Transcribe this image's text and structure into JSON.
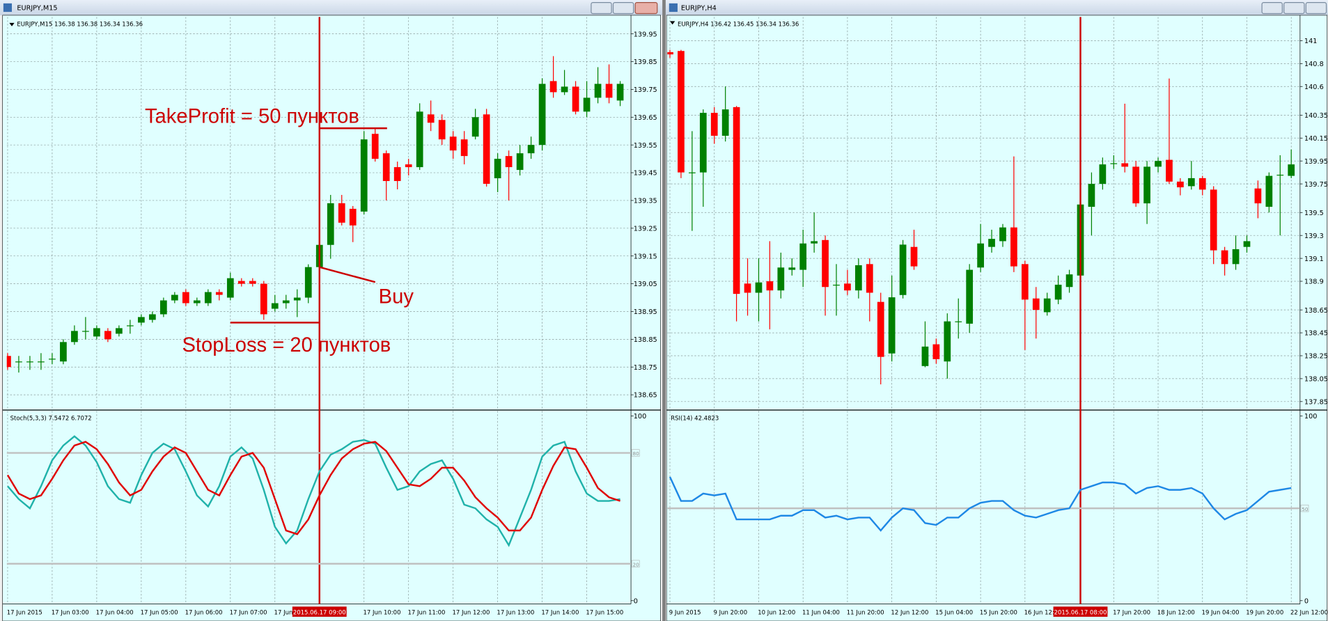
{
  "windows": [
    {
      "title": "EURJPY,M15"
    },
    {
      "title": "EURJPY,H4"
    }
  ],
  "chart_data": [
    {
      "type": "candlestick",
      "header": "EURJPY,M15  136.38 136.38 136.34 136.36",
      "up_color": "#008000",
      "down_color": "#ff0000",
      "ylim": [
        138.65,
        139.95
      ],
      "yticks": [
        139.95,
        139.85,
        139.75,
        139.65,
        139.55,
        139.45,
        139.35,
        139.25,
        139.15,
        139.05,
        138.95,
        138.85,
        138.75,
        138.65
      ],
      "grid": true,
      "xticks": [
        {
          "value": 0,
          "label": "17 Jun 2015"
        },
        {
          "value": 4,
          "label": "17 Jun 03:00"
        },
        {
          "value": 8,
          "label": "17 Jun 04:00"
        },
        {
          "value": 12,
          "label": "17 Jun 05:00"
        },
        {
          "value": 16,
          "label": "17 Jun 06:00"
        },
        {
          "value": 20,
          "label": "17 Jun 07:00"
        },
        {
          "value": 24,
          "label": "17 Jun 08:00"
        },
        {
          "value": 32,
          "label": "17 Jun 10:00"
        },
        {
          "value": 36,
          "label": "17 Jun 11:00"
        },
        {
          "value": 40,
          "label": "17 Jun 12:00"
        },
        {
          "value": 44,
          "label": "17 Jun 13:00"
        },
        {
          "value": 48,
          "label": "17 Jun 14:00"
        },
        {
          "value": 52,
          "label": "17 Jun 15:00"
        }
      ],
      "cursor": {
        "value": 28,
        "label": "2015.06.17 09:00"
      },
      "annotations": [
        {
          "text": "TakeProfit = 50 пунктов",
          "value": 139.61
        },
        {
          "text": "Buy",
          "value": 139.11
        },
        {
          "text": "StopLoss = 20 пунктов",
          "value": 138.91
        }
      ],
      "ohlc": [
        [
          138.79,
          138.8,
          138.74,
          138.75
        ],
        [
          138.77,
          138.79,
          138.73,
          138.77
        ],
        [
          138.77,
          138.79,
          138.74,
          138.77
        ],
        [
          138.77,
          138.8,
          138.74,
          138.77
        ],
        [
          138.78,
          138.8,
          138.76,
          138.78
        ],
        [
          138.77,
          138.85,
          138.76,
          138.84
        ],
        [
          138.84,
          138.9,
          138.83,
          138.88
        ],
        [
          138.88,
          138.93,
          138.85,
          138.88
        ],
        [
          138.86,
          138.9,
          138.85,
          138.89
        ],
        [
          138.88,
          138.89,
          138.84,
          138.85
        ],
        [
          138.87,
          138.9,
          138.86,
          138.89
        ],
        [
          138.9,
          138.92,
          138.87,
          138.9
        ],
        [
          138.91,
          138.94,
          138.9,
          138.93
        ],
        [
          138.92,
          138.95,
          138.91,
          138.94
        ],
        [
          138.94,
          139.0,
          138.93,
          138.99
        ],
        [
          138.99,
          139.02,
          138.98,
          139.01
        ],
        [
          139.02,
          139.03,
          138.97,
          138.98
        ],
        [
          138.98,
          139.0,
          138.97,
          138.99
        ],
        [
          138.98,
          139.03,
          138.97,
          139.02
        ],
        [
          139.02,
          139.03,
          138.99,
          139.01
        ],
        [
          139.0,
          139.09,
          138.99,
          139.07
        ],
        [
          139.06,
          139.07,
          139.04,
          139.05
        ],
        [
          139.06,
          139.07,
          139.04,
          139.05
        ],
        [
          139.05,
          139.06,
          138.92,
          138.94
        ],
        [
          138.96,
          139.01,
          138.95,
          138.98
        ],
        [
          138.98,
          139.01,
          138.96,
          138.99
        ],
        [
          138.99,
          139.03,
          138.93,
          139.0
        ],
        [
          139.0,
          139.12,
          138.98,
          139.11
        ],
        [
          139.11,
          139.2,
          139.1,
          139.19
        ],
        [
          139.19,
          139.37,
          139.14,
          139.34
        ],
        [
          139.34,
          139.37,
          139.26,
          139.27
        ],
        [
          139.32,
          139.33,
          139.2,
          139.26
        ],
        [
          139.31,
          139.6,
          139.3,
          139.57
        ],
        [
          139.59,
          139.61,
          139.49,
          139.5
        ],
        [
          139.52,
          139.53,
          139.35,
          139.42
        ],
        [
          139.47,
          139.49,
          139.39,
          139.42
        ],
        [
          139.48,
          139.5,
          139.44,
          139.47
        ],
        [
          139.47,
          139.7,
          139.46,
          139.67
        ],
        [
          139.66,
          139.71,
          139.6,
          139.63
        ],
        [
          139.64,
          139.66,
          139.55,
          139.57
        ],
        [
          139.58,
          139.6,
          139.5,
          139.53
        ],
        [
          139.57,
          139.6,
          139.48,
          139.51
        ],
        [
          139.58,
          139.68,
          139.57,
          139.65
        ],
        [
          139.66,
          139.68,
          139.4,
          139.41
        ],
        [
          139.43,
          139.52,
          139.38,
          139.5
        ],
        [
          139.51,
          139.53,
          139.35,
          139.47
        ],
        [
          139.46,
          139.55,
          139.44,
          139.52
        ],
        [
          139.52,
          139.58,
          139.5,
          139.55
        ],
        [
          139.55,
          139.79,
          139.53,
          139.77
        ],
        [
          139.78,
          139.87,
          139.72,
          139.74
        ],
        [
          139.74,
          139.82,
          139.73,
          139.76
        ],
        [
          139.76,
          139.78,
          139.66,
          139.67
        ],
        [
          139.67,
          139.78,
          139.65,
          139.72
        ],
        [
          139.72,
          139.83,
          139.7,
          139.77
        ],
        [
          139.77,
          139.84,
          139.7,
          139.72
        ],
        [
          139.71,
          139.78,
          139.69,
          139.77
        ]
      ]
    },
    {
      "type": "line",
      "header": "Stoch(5,3,3) 7.5472 6.7072",
      "ylim": [
        0,
        100
      ],
      "yticks": [
        100,
        0
      ],
      "levels": [
        80,
        20
      ],
      "series": [
        {
          "color": "#20b2aa",
          "values": [
            62,
            55,
            50,
            62,
            76,
            84,
            89,
            84,
            75,
            62,
            55,
            53,
            68,
            80,
            85,
            82,
            70,
            57,
            51,
            62,
            78,
            83,
            77,
            60,
            40,
            31,
            38,
            55,
            70,
            79,
            82,
            86,
            87,
            85,
            72,
            60,
            62,
            70,
            74,
            76,
            66,
            52,
            50,
            44,
            40,
            30,
            45,
            60,
            78,
            84,
            86,
            70,
            58,
            54,
            54,
            55
          ]
        },
        {
          "color": "#e00000",
          "values": [
            68,
            58,
            55,
            57,
            66,
            76,
            84,
            86,
            82,
            74,
            64,
            57,
            60,
            70,
            78,
            83,
            80,
            70,
            60,
            57,
            68,
            78,
            80,
            72,
            55,
            38,
            36,
            44,
            57,
            68,
            77,
            82,
            85,
            86,
            81,
            72,
            63,
            62,
            66,
            72,
            72,
            65,
            56,
            50,
            45,
            38,
            38,
            45,
            60,
            73,
            83,
            82,
            72,
            61,
            56,
            54
          ]
        }
      ]
    },
    {
      "type": "candlestick",
      "header": "EURJPY,H4  136.42 136.45 136.34 136.36",
      "up_color": "#008000",
      "down_color": "#ff0000",
      "ylim": [
        137.85,
        141.0
      ],
      "yticks": [
        141.0,
        140.8,
        140.6,
        140.35,
        140.15,
        139.95,
        139.75,
        139.5,
        139.3,
        139.1,
        138.9,
        138.65,
        138.45,
        138.25,
        138.05,
        137.85
      ],
      "grid": true,
      "xticks": [
        {
          "value": 0,
          "label": "9 Jun 2015"
        },
        {
          "value": 4,
          "label": "9 Jun 20:00"
        },
        {
          "value": 8,
          "label": "10 Jun 12:00"
        },
        {
          "value": 12,
          "label": "11 Jun 04:00"
        },
        {
          "value": 16,
          "label": "11 Jun 20:00"
        },
        {
          "value": 20,
          "label": "12 Jun 12:00"
        },
        {
          "value": 24,
          "label": "15 Jun 04:00"
        },
        {
          "value": 28,
          "label": "15 Jun 20:00"
        },
        {
          "value": 32,
          "label": "16 Jun 12:00"
        },
        {
          "value": 40,
          "label": "17 Jun 20:00"
        },
        {
          "value": 44,
          "label": "18 Jun 12:00"
        },
        {
          "value": 48,
          "label": "19 Jun 04:00"
        },
        {
          "value": 52,
          "label": "19 Jun 20:00"
        },
        {
          "value": 56,
          "label": "22 Jun 12:00"
        }
      ],
      "cursor": {
        "value": 37,
        "label": "2015.06.17 08:00"
      },
      "ohlc": [
        [
          140.9,
          140.92,
          140.85,
          140.88
        ],
        [
          140.91,
          140.92,
          139.8,
          139.85
        ],
        [
          139.85,
          140.21,
          139.34,
          139.85
        ],
        [
          139.85,
          140.4,
          139.55,
          140.37
        ],
        [
          140.37,
          140.42,
          140.1,
          140.17
        ],
        [
          140.17,
          140.6,
          140.12,
          140.4
        ],
        [
          140.42,
          140.43,
          138.55,
          138.79
        ],
        [
          138.88,
          139.1,
          138.6,
          138.8
        ],
        [
          138.8,
          139.1,
          138.55,
          138.89
        ],
        [
          138.9,
          139.25,
          138.48,
          138.82
        ],
        [
          138.82,
          139.15,
          138.75,
          139.02
        ],
        [
          139.0,
          139.1,
          138.95,
          139.02
        ],
        [
          139.0,
          139.35,
          138.85,
          139.23
        ],
        [
          139.23,
          139.5,
          139.15,
          139.25
        ],
        [
          139.26,
          139.3,
          138.6,
          138.85
        ],
        [
          138.87,
          139.05,
          138.6,
          138.87
        ],
        [
          138.88,
          139.0,
          138.78,
          138.82
        ],
        [
          138.82,
          139.1,
          138.75,
          139.04
        ],
        [
          139.05,
          139.1,
          138.55,
          138.8
        ],
        [
          138.72,
          138.8,
          138.0,
          138.24
        ],
        [
          138.27,
          138.95,
          138.2,
          138.76
        ],
        [
          138.78,
          139.26,
          138.75,
          139.22
        ],
        [
          139.2,
          139.35,
          139.0,
          139.03
        ],
        [
          138.16,
          138.55,
          138.15,
          138.33
        ],
        [
          138.35,
          138.4,
          138.18,
          138.22
        ],
        [
          138.2,
          138.62,
          138.05,
          138.55
        ],
        [
          138.55,
          138.75,
          138.4,
          138.55
        ],
        [
          138.53,
          139.05,
          138.45,
          139.0
        ],
        [
          139.02,
          139.4,
          138.98,
          139.23
        ],
        [
          139.2,
          139.35,
          139.15,
          139.27
        ],
        [
          139.25,
          139.4,
          139.2,
          139.37
        ],
        [
          139.37,
          139.99,
          138.98,
          139.03
        ],
        [
          139.05,
          139.08,
          138.3,
          138.74
        ],
        [
          138.75,
          138.85,
          138.4,
          138.65
        ],
        [
          138.63,
          138.8,
          138.6,
          138.75
        ],
        [
          138.74,
          138.95,
          138.7,
          138.87
        ],
        [
          138.85,
          139.0,
          138.8,
          138.96
        ],
        [
          138.95,
          139.78,
          138.93,
          139.57
        ],
        [
          139.55,
          139.85,
          139.3,
          139.75
        ],
        [
          139.75,
          139.98,
          139.7,
          139.92
        ],
        [
          139.93,
          140.0,
          139.88,
          139.93
        ],
        [
          139.93,
          140.45,
          139.85,
          139.9
        ],
        [
          139.9,
          139.95,
          139.55,
          139.58
        ],
        [
          139.58,
          139.95,
          139.4,
          139.9
        ],
        [
          139.9,
          139.98,
          139.85,
          139.95
        ],
        [
          139.96,
          140.67,
          139.75,
          139.77
        ],
        [
          139.77,
          139.8,
          139.65,
          139.72
        ],
        [
          139.73,
          139.95,
          139.7,
          139.8
        ],
        [
          139.8,
          139.82,
          139.65,
          139.7
        ],
        [
          139.7,
          139.73,
          139.05,
          139.17
        ],
        [
          139.17,
          139.2,
          138.95,
          139.05
        ],
        [
          139.05,
          139.3,
          139.0,
          139.18
        ],
        [
          139.2,
          139.3,
          139.15,
          139.25
        ],
        [
          139.71,
          139.78,
          139.45,
          139.58
        ],
        [
          139.55,
          139.85,
          139.5,
          139.82
        ],
        [
          139.83,
          140.0,
          139.3,
          139.83
        ],
        [
          139.82,
          140.05,
          139.8,
          139.92
        ]
      ]
    },
    {
      "type": "line",
      "header": "RSI(14) 42.4823",
      "ylim": [
        0,
        100
      ],
      "yticks": [
        100,
        0
      ],
      "levels": [
        50
      ],
      "series": [
        {
          "color": "#1e88e5",
          "values": [
            67,
            54,
            54,
            58,
            57,
            58,
            44,
            44,
            44,
            44,
            46,
            46,
            49,
            49,
            45,
            46,
            44,
            45,
            45,
            38,
            45,
            50,
            49,
            42,
            41,
            45,
            45,
            50,
            53,
            54,
            54,
            49,
            46,
            45,
            47,
            49,
            50,
            60,
            62,
            64,
            64,
            63,
            58,
            61,
            62,
            60,
            60,
            61,
            58,
            50,
            44,
            47,
            49,
            54,
            59,
            60,
            61
          ]
        }
      ]
    }
  ]
}
